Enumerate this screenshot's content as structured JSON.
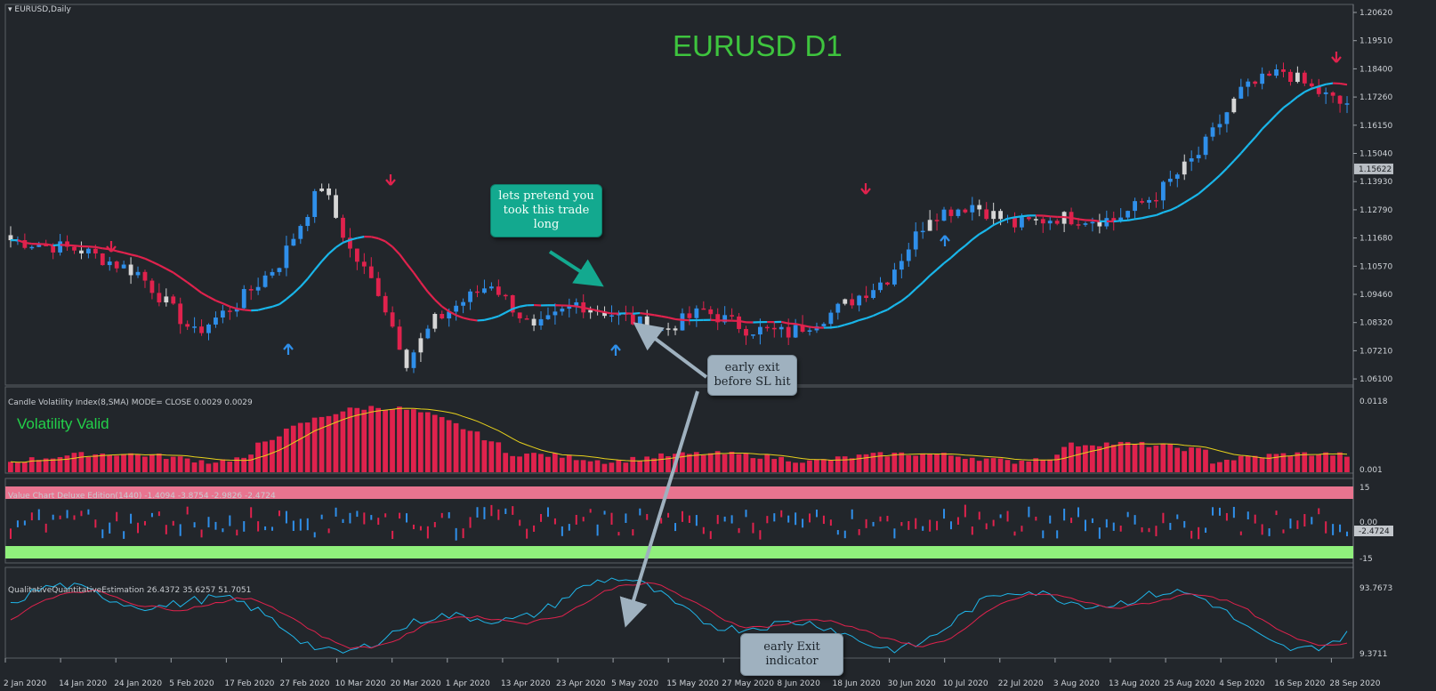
{
  "window": {
    "title": "EURUSD,Daily",
    "menu_icon": "triangle-down-icon"
  },
  "main_chart": {
    "overlay_title": "EURUSD D1",
    "price_labels": [
      "1.20620",
      "1.19510",
      "1.18400",
      "1.17260",
      "1.16150",
      "1.15040",
      "1.13930",
      "1.12790",
      "1.11680",
      "1.10570",
      "1.09460",
      "1.08320",
      "1.07210",
      "1.06100"
    ],
    "current_price": "1.15622",
    "colors": {
      "bull": "#2f8fea",
      "bear": "#e0224d",
      "neutral": "#d6d6d6",
      "ma_up": "#19b6ea",
      "ma_down": "#e0224d",
      "arrow_up": "#2f8fea",
      "arrow_down": "#e0224d",
      "title": "#3ec43e"
    }
  },
  "volatility_panel": {
    "title": "Candle Volatility Index(8,SMA) MODE= CLOSE 0.0029 0.0029",
    "status": "Volatility Valid",
    "axis_top": "0.0118",
    "axis_bottom": "0.001",
    "colors": {
      "bars": "#e0224d",
      "line": "#e7d11c",
      "status": "#22d04a"
    }
  },
  "value_chart_panel": {
    "title": "Value Chart Deluxe Edition(1440) -1.4094 -3.8754 -2.9826 -2.4724",
    "axis_top": "15",
    "axis_zero": "0.00",
    "axis_bottom": "-15",
    "current_value": "-2.4724",
    "colors": {
      "upper_band": "#e8748f",
      "lower_band": "#90f07c"
    }
  },
  "qqe_panel": {
    "title": "QualitativeQuantitativeEstimation 26.4372 35.6257 51.7051",
    "axis_top": "93.7673",
    "axis_bottom": "9.3711",
    "colors": {
      "fast": "#1fb6ea",
      "slow": "#e0224d"
    }
  },
  "date_axis": [
    "2 Jan 2020",
    "14 Jan 2020",
    "24 Jan 2020",
    "5 Feb 2020",
    "17 Feb 2020",
    "27 Feb 2020",
    "10 Mar 2020",
    "20 Mar 2020",
    "1 Apr 2020",
    "13 Apr 2020",
    "23 Apr 2020",
    "5 May 2020",
    "15 May 2020",
    "27 May 2020",
    "8 Jun 2020",
    "18 Jun 2020",
    "30 Jun 2020",
    "10 Jul 2020",
    "22 Jul 2020",
    "3 Aug 2020",
    "13 Aug 2020",
    "25 Aug 2020",
    "4 Sep 2020",
    "16 Sep 2020",
    "28 Sep 2020"
  ],
  "annotations": {
    "trade": "lets pretend you took this trade long",
    "early_exit": "early exit before SL hit",
    "indicator": "early Exit indicator"
  }
}
